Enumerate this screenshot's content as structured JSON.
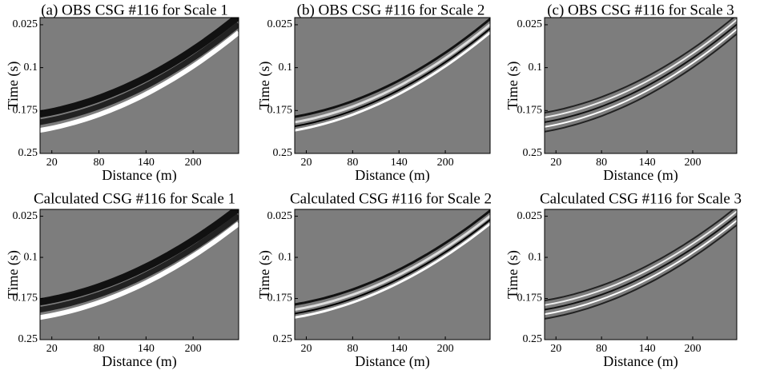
{
  "chart_data": [
    {
      "type": "image",
      "title": "(a) OBS CSG #116 for Scale 1",
      "xlabel": "Distance (m)",
      "ylabel": "Time (s)",
      "xlim": [
        5,
        258
      ],
      "ylim": [
        0.0125,
        0.25
      ],
      "y_inverted": true,
      "xticks": [
        20,
        80,
        140,
        200
      ],
      "yticks": [
        0.025,
        0.1,
        0.175,
        0.25
      ]
    },
    {
      "type": "image",
      "title": "(b) OBS CSG #116 for Scale 2",
      "xlabel": "Distance (m)",
      "ylabel": "Time (s)",
      "xlim": [
        5,
        258
      ],
      "ylim": [
        0.0125,
        0.25
      ],
      "y_inverted": true,
      "xticks": [
        20,
        80,
        140,
        200
      ],
      "yticks": [
        0.025,
        0.1,
        0.175,
        0.25
      ]
    },
    {
      "type": "image",
      "title": "(c) OBS CSG #116 for Scale 3",
      "xlabel": "Distance (m)",
      "ylabel": "Time (s)",
      "xlim": [
        5,
        258
      ],
      "ylim": [
        0.0125,
        0.25
      ],
      "y_inverted": true,
      "xticks": [
        20,
        80,
        140,
        200
      ],
      "yticks": [
        0.025,
        0.1,
        0.175,
        0.25
      ]
    },
    {
      "type": "image",
      "title": "Calculated CSG #116 for Scale 1",
      "xlabel": "Distance (m)",
      "ylabel": "Time (s)",
      "xlim": [
        5,
        258
      ],
      "ylim": [
        0.0125,
        0.25
      ],
      "y_inverted": true,
      "xticks": [
        20,
        80,
        140,
        200
      ],
      "yticks": [
        0.025,
        0.1,
        0.175,
        0.25
      ]
    },
    {
      "type": "image",
      "title": "Calculated CSG #116 for Scale 2",
      "xlabel": "Distance (m)",
      "ylabel": "Time (s)",
      "xlim": [
        5,
        258
      ],
      "ylim": [
        0.0125,
        0.25
      ],
      "y_inverted": true,
      "xticks": [
        20,
        80,
        140,
        200
      ],
      "yticks": [
        0.025,
        0.1,
        0.175,
        0.25
      ]
    },
    {
      "type": "image",
      "title": "Calculated CSG #116 for Scale 3",
      "xlabel": "Distance (m)",
      "ylabel": "Time (s)",
      "xlim": [
        5,
        258
      ],
      "ylim": [
        0.0125,
        0.25
      ],
      "y_inverted": true,
      "xticks": [
        20,
        80,
        140,
        200
      ],
      "yticks": [
        0.025,
        0.1,
        0.175,
        0.25
      ]
    }
  ]
}
